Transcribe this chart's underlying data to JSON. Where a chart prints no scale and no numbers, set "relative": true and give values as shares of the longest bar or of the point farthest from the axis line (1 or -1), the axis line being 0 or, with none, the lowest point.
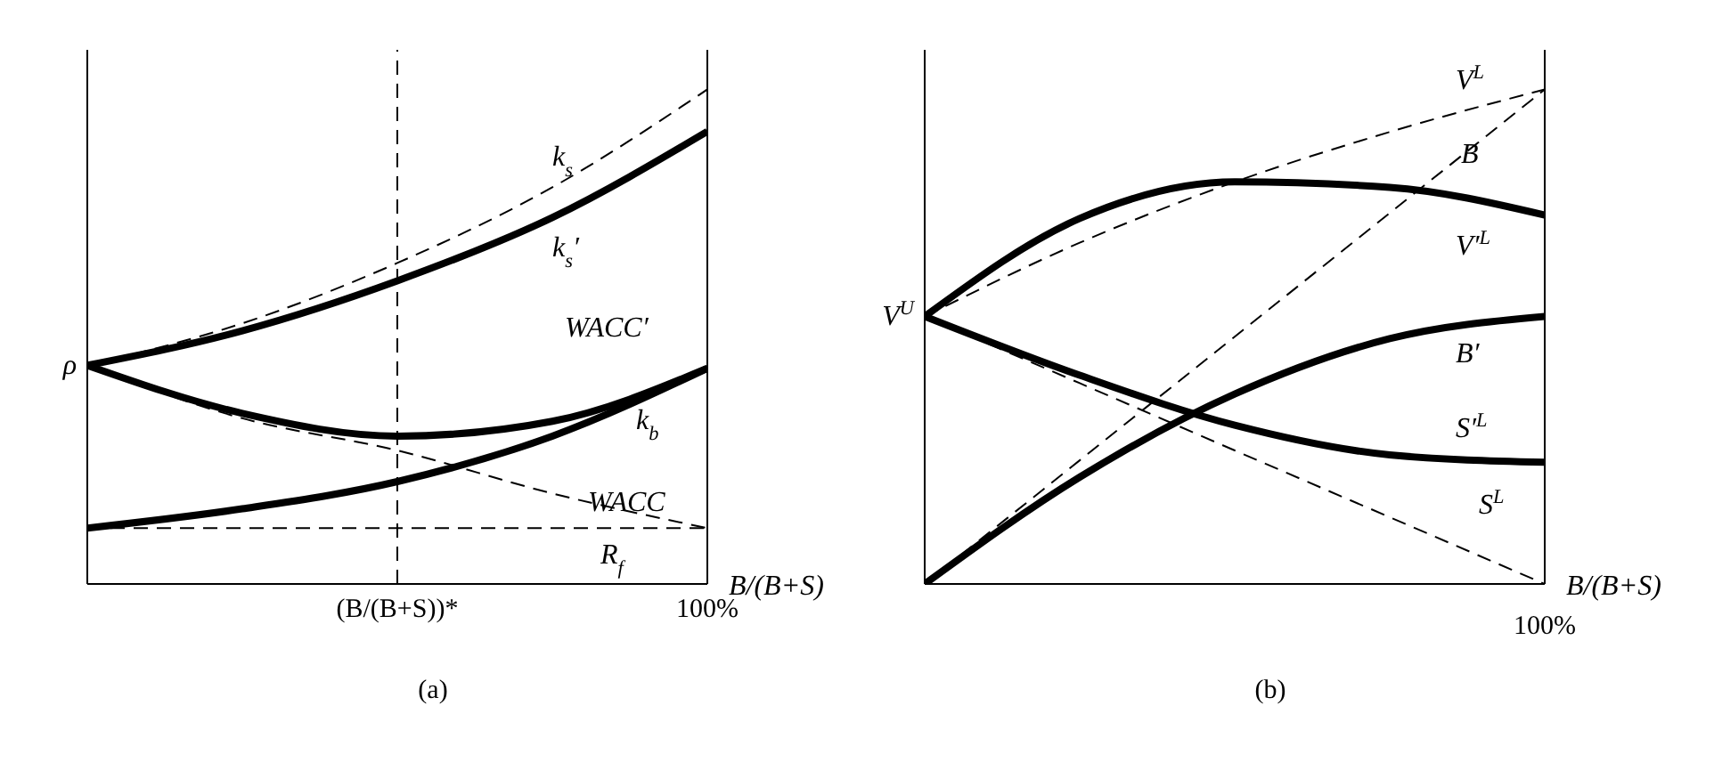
{
  "chart_data": [
    {
      "type": "line",
      "title": "(a)",
      "relative": true,
      "xlabel": "B/(B+S)",
      "categories": [
        null,
        null,
        "(B/(B+S))*",
        null,
        "100%"
      ],
      "grid": false,
      "legend": false,
      "marker": "none",
      "series": [
        {
          "name": "k$_{s}$",
          "color": "#000000",
          "line_style": "dashed",
          "values": [
            0.442,
            0.527,
            0.649,
            0.802,
            1.0
          ]
        },
        {
          "name": "k$_{s}$′",
          "color": "#000000",
          "line_style": "solid",
          "values": [
            0.442,
            0.512,
            0.613,
            0.741,
            0.915
          ]
        },
        {
          "name": "WACC′",
          "color": "#000000",
          "line_style": "solid",
          "values": [
            0.442,
            0.345,
            0.299,
            0.329,
            0.436
          ]
        },
        {
          "name": "k$_{b}$",
          "color": "#000000",
          "line_style": "solid",
          "values": [
            0.113,
            0.152,
            0.207,
            0.299,
            0.436
          ]
        },
        {
          "name": "WACC",
          "color": "#000000",
          "line_style": "dashed",
          "values": [
            0.442,
            0.335,
            0.27,
            0.183,
            0.113
          ]
        },
        {
          "name": "R$_{f}$",
          "color": "#000000",
          "line_style": "dashed",
          "values": [
            0.113,
            0.113,
            0.113,
            0.113,
            0.113
          ]
        }
      ],
      "ref_lines": [
        {
          "axis": "x",
          "value": "(B/(B+S))*",
          "line_style": "dashed",
          "color": "#000000"
        }
      ],
      "annotations": [
        "ρ"
      ]
    },
    {
      "type": "line",
      "title": "(b)",
      "relative": true,
      "xlabel": "B/(B+S)",
      "categories": [
        null,
        null,
        null,
        null,
        null
      ],
      "grid": false,
      "legend": false,
      "marker": "none",
      "series": [
        {
          "name": "V$^{L}$",
          "color": "#000000",
          "line_style": "dashed",
          "values": [
            0.541,
            0.69,
            0.813,
            0.914,
            1.0
          ]
        },
        {
          "name": "V′$^{L}$",
          "color": "#000000",
          "line_style": "solid",
          "values": [
            0.541,
            0.739,
            0.813,
            0.802,
            0.746
          ]
        },
        {
          "name": "B",
          "color": "#000000",
          "line_style": "dashed",
          "values": [
            0,
            0.25,
            0.5,
            0.75,
            1.0
          ]
        },
        {
          "name": "B′",
          "color": "#000000",
          "line_style": "solid",
          "values": [
            0,
            0.216,
            0.384,
            0.496,
            0.541
          ]
        },
        {
          "name": "S′$^{L}$",
          "color": "#000000",
          "line_style": "solid",
          "values": [
            0.541,
            0.422,
            0.321,
            0.261,
            0.246
          ]
        },
        {
          "name": "S$^{L}$",
          "color": "#000000",
          "line_style": "dashed",
          "values": [
            0.541,
            0.406,
            0.27,
            0.135,
            0
          ]
        }
      ],
      "annotations": [
        "V$^{U}$",
        "100%"
      ]
    }
  ]
}
